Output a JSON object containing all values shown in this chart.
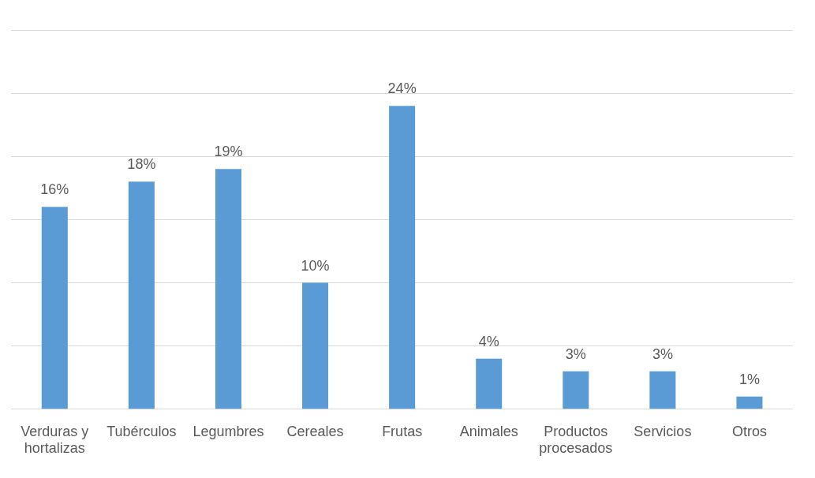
{
  "chart_data": {
    "type": "bar",
    "categories": [
      "Verduras y hortalizas",
      "Tubérculos",
      "Legumbres",
      "Cereales",
      "Frutas",
      "Animales",
      "Productos procesados",
      "Servicios",
      "Otros"
    ],
    "values": [
      16,
      18,
      19,
      10,
      24,
      4,
      3,
      3,
      1
    ],
    "color": "#5b9bd5",
    "value_labels": [
      "16%",
      "18%",
      "19%",
      "10%",
      "24%",
      "4%",
      "3%",
      "3%",
      "1%"
    ],
    "ylim": [
      0,
      30
    ],
    "yticks": [
      {
        "value": 0,
        "label": null
      },
      {
        "value": 5,
        "label": null
      },
      {
        "value": 10,
        "label": null
      },
      {
        "value": 15,
        "label": null
      },
      {
        "value": 20,
        "label": null
      },
      {
        "value": 25,
        "label": null
      },
      {
        "value": 30,
        "label": null
      }
    ],
    "grid": "y",
    "tick_labels": "x",
    "legend": false
  }
}
